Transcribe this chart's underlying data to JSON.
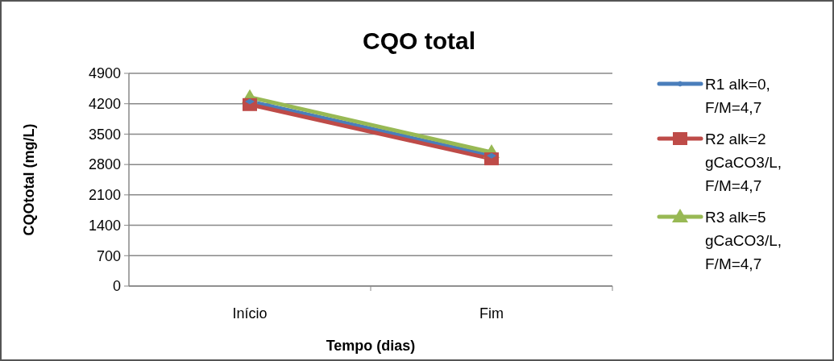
{
  "chart_data": {
    "type": "line",
    "title": "CQO total",
    "xlabel": "Tempo (dias)",
    "ylabel": "CQOtotal (mg/L)",
    "categories": [
      "Início",
      "Fim"
    ],
    "ylim": [
      0,
      4900
    ],
    "yticks": [
      0,
      700,
      1400,
      2100,
      2800,
      3500,
      4200,
      4900
    ],
    "grid": "y",
    "legend": "right",
    "line_style": "solid",
    "series": [
      {
        "name": "R1 alk=0, F/M=4,7",
        "color": "#4a7ebb",
        "values": [
          4250,
          3000
        ],
        "marker": "diamond"
      },
      {
        "name": "R2 alk=2 gCaCO3/L, F/M=4,7",
        "color": "#be4b48",
        "values": [
          4180,
          2930
        ],
        "marker": "square"
      },
      {
        "name": "R3 alk=5 gCaCO3/L, F/M=4,7",
        "color": "#98b954",
        "values": [
          4350,
          3080
        ],
        "marker": "triangle"
      }
    ]
  }
}
